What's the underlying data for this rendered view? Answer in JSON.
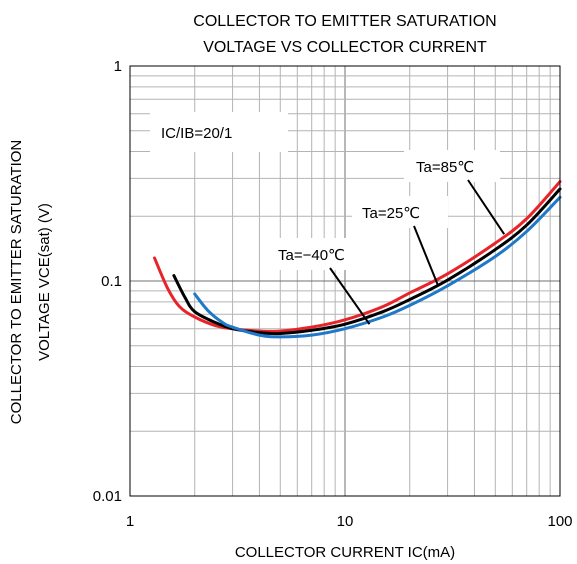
{
  "chart_data": {
    "type": "line",
    "title_line1": "COLLECTOR TO EMITTER SATURATION",
    "title_line2": "VOLTAGE VS COLLECTOR CURRENT",
    "xlabel": "COLLECTOR CURRENT  IC(mA)",
    "ylabel_line1": "COLLECTOR TO EMITTER SATURATION",
    "ylabel_line2": "VOLTAGE VCE(sat) (V)",
    "x_scale": "log",
    "y_scale": "log",
    "xlim": [
      1,
      100
    ],
    "ylim": [
      0.01,
      1
    ],
    "x_ticks": [
      {
        "value": 1,
        "label": "1"
      },
      {
        "value": 10,
        "label": "10"
      },
      {
        "value": 100,
        "label": "100"
      }
    ],
    "y_ticks": [
      {
        "value": 1,
        "label": "1"
      },
      {
        "value": 0.1,
        "label": "0.1"
      },
      {
        "value": 0.01,
        "label": "0.01"
      }
    ],
    "grid": true,
    "condition_label": "IC/IB=20/1",
    "series": [
      {
        "name": "Ta=85℃",
        "color": "#e8242a",
        "x": [
          1.3,
          1.5,
          1.7,
          2.0,
          2.5,
          3.0,
          4.0,
          5.0,
          7.0,
          10,
          15,
          20,
          30,
          50,
          70,
          100
        ],
        "y": [
          0.128,
          0.092,
          0.076,
          0.068,
          0.062,
          0.06,
          0.0585,
          0.0585,
          0.061,
          0.066,
          0.076,
          0.088,
          0.108,
          0.15,
          0.195,
          0.29
        ]
      },
      {
        "name": "Ta=25℃",
        "color": "#000000",
        "x": [
          1.6,
          1.8,
          2.0,
          2.5,
          3.0,
          4.0,
          5.0,
          7.0,
          10,
          15,
          20,
          30,
          50,
          70,
          100
        ],
        "y": [
          0.106,
          0.084,
          0.072,
          0.064,
          0.06,
          0.0575,
          0.057,
          0.059,
          0.063,
          0.072,
          0.082,
          0.101,
          0.14,
          0.182,
          0.268
        ]
      },
      {
        "name": "Ta=−40℃",
        "color": "#1f78c8",
        "x": [
          2.0,
          2.3,
          2.7,
          3.0,
          4.0,
          5.0,
          7.0,
          10,
          15,
          20,
          30,
          50,
          70,
          100
        ],
        "y": [
          0.087,
          0.073,
          0.064,
          0.061,
          0.056,
          0.055,
          0.056,
          0.06,
          0.068,
          0.077,
          0.095,
          0.13,
          0.17,
          0.245
        ]
      }
    ],
    "annotations": [
      {
        "text": "Ta=85℃",
        "series": "Ta=85℃",
        "point_at": [
          55,
          0.165
        ]
      },
      {
        "text": "Ta=25℃",
        "series": "Ta=25℃",
        "point_at": [
          27,
          0.096
        ]
      },
      {
        "text": "Ta=−40℃",
        "series": "Ta=−40℃",
        "point_at": [
          13,
          0.063
        ]
      }
    ]
  }
}
